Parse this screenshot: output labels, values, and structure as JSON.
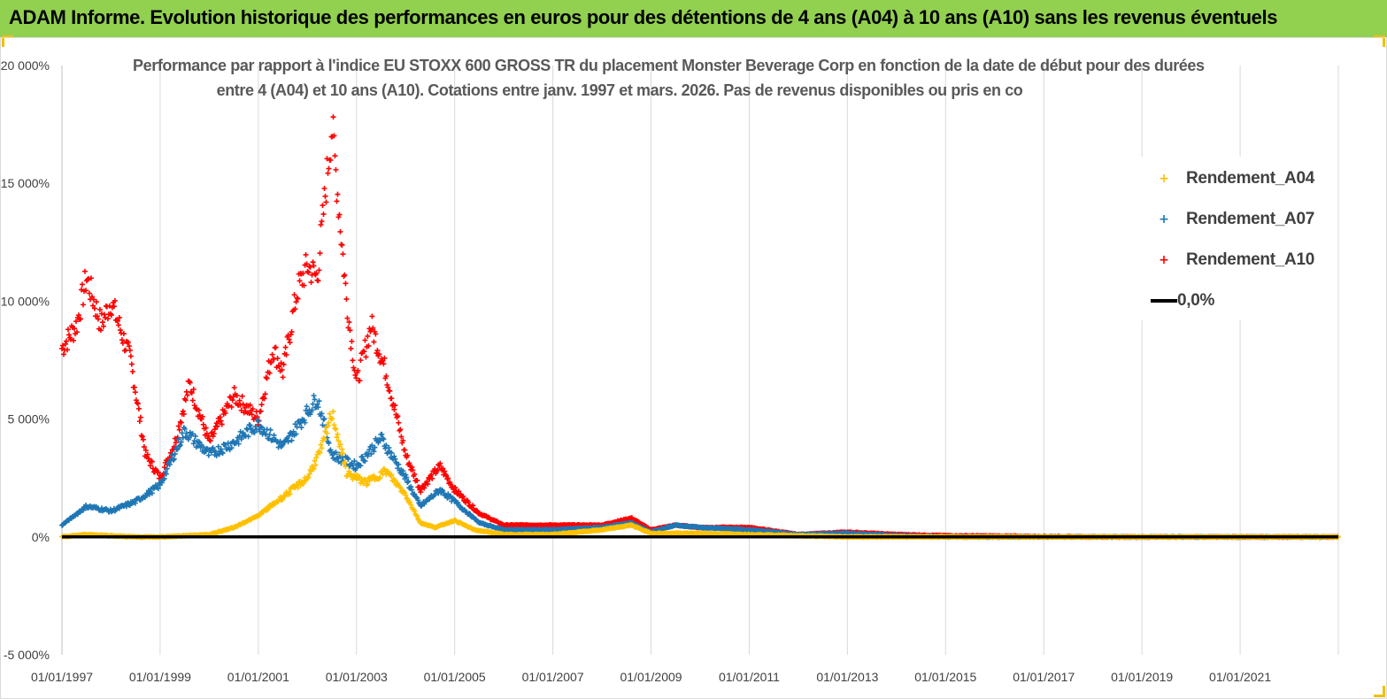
{
  "banner": {
    "title": "ADAM Informe. Evolution historique des performances en euros pour des détentions de 4 ans (A04) à 10 ans (A10) sans les revenus éventuels"
  },
  "colors": {
    "banner_bg": "#92d050",
    "A04": "#ffc000",
    "A07": "#1f77b4",
    "A10": "#ff0000",
    "zero": "#000000",
    "grid": "#d9d9d9"
  },
  "chart_data": {
    "type": "scatter",
    "title_line1": "Performance par rapport à l'indice EU STOXX 600 GROSS TR  du placement Monster Beverage Corp en fonction de la date de début pour des durées",
    "title_line2": "entre 4 (A04) et 10 ans (A10). Cotations entre janv. 1997 et mars. 2026. Pas de revenus disponibles ou pris en co",
    "xlabel": "",
    "ylabel": "",
    "x_range": [
      "1997-01-01",
      "2023-03-01"
    ],
    "ylim": [
      -5000,
      20000
    ],
    "y_ticks": [
      -5000,
      0,
      5000,
      10000,
      15000,
      20000
    ],
    "y_tick_labels": [
      "-5 000%",
      "0%",
      "5 000%",
      "10 000%",
      "15 000%",
      "20 000%"
    ],
    "x_tick_labels": [
      "01/01/1997",
      "01/01/1999",
      "01/01/2001",
      "01/01/2003",
      "01/01/2005",
      "01/01/2007",
      "01/01/2009",
      "01/01/2011",
      "01/01/2013",
      "01/01/2015",
      "01/01/2017",
      "01/01/2019",
      "01/01/2021"
    ],
    "grid": "vertical",
    "legend_position": "top-right",
    "series": [
      {
        "name": "Rendement_A04",
        "marker": "+",
        "points": [
          [
            1997.0,
            0
          ],
          [
            1997.5,
            100
          ],
          [
            1998.0,
            50
          ],
          [
            1998.5,
            0
          ],
          [
            1999.0,
            0
          ],
          [
            1999.5,
            50
          ],
          [
            2000.0,
            100
          ],
          [
            2000.5,
            400
          ],
          [
            2001.0,
            900
          ],
          [
            2001.5,
            1700
          ],
          [
            2002.0,
            2500
          ],
          [
            2002.3,
            3800
          ],
          [
            2002.5,
            5300
          ],
          [
            2002.8,
            2700
          ],
          [
            2003.2,
            2300
          ],
          [
            2003.6,
            2800
          ],
          [
            2004.0,
            1800
          ],
          [
            2004.3,
            600
          ],
          [
            2004.6,
            400
          ],
          [
            2005.0,
            700
          ],
          [
            2005.4,
            300
          ],
          [
            2006.0,
            100
          ],
          [
            2007.0,
            100
          ],
          [
            2008.0,
            300
          ],
          [
            2008.6,
            500
          ],
          [
            2009.0,
            150
          ],
          [
            2010.0,
            150
          ],
          [
            2011.0,
            100
          ],
          [
            2012.0,
            50
          ],
          [
            2013.0,
            0
          ],
          [
            2015.0,
            0
          ],
          [
            2018.0,
            0
          ],
          [
            2020.0,
            0
          ],
          [
            2023.0,
            0
          ]
        ]
      },
      {
        "name": "Rendement_A07",
        "marker": "+",
        "points": [
          [
            1997.0,
            500
          ],
          [
            1997.5,
            1300
          ],
          [
            1998.0,
            1100
          ],
          [
            1998.5,
            1500
          ],
          [
            1999.0,
            2200
          ],
          [
            1999.5,
            4500
          ],
          [
            2000.0,
            3500
          ],
          [
            2000.5,
            4000
          ],
          [
            2001.0,
            4800
          ],
          [
            2001.5,
            3800
          ],
          [
            2001.8,
            4700
          ],
          [
            2002.2,
            5900
          ],
          [
            2002.5,
            3500
          ],
          [
            2003.0,
            3000
          ],
          [
            2003.5,
            4200
          ],
          [
            2004.0,
            2500
          ],
          [
            2004.3,
            1300
          ],
          [
            2004.7,
            2000
          ],
          [
            2005.0,
            1500
          ],
          [
            2005.5,
            600
          ],
          [
            2006.0,
            300
          ],
          [
            2007.0,
            300
          ],
          [
            2008.0,
            400
          ],
          [
            2008.6,
            600
          ],
          [
            2009.0,
            200
          ],
          [
            2009.5,
            500
          ],
          [
            2010.0,
            400
          ],
          [
            2011.0,
            300
          ],
          [
            2012.0,
            100
          ],
          [
            2013.0,
            150
          ],
          [
            2014.0,
            50
          ],
          [
            2015.0,
            0
          ],
          [
            2018.0,
            0
          ],
          [
            2023.0,
            0
          ]
        ]
      },
      {
        "name": "Rendement_A10",
        "marker": "+",
        "points": [
          [
            1997.0,
            8000
          ],
          [
            1997.3,
            9000
          ],
          [
            1997.5,
            11000
          ],
          [
            1997.8,
            9000
          ],
          [
            1998.0,
            10000
          ],
          [
            1998.4,
            7500
          ],
          [
            1998.7,
            3500
          ],
          [
            1999.0,
            2500
          ],
          [
            1999.3,
            4000
          ],
          [
            1999.6,
            6500
          ],
          [
            2000.0,
            4000
          ],
          [
            2000.5,
            6000
          ],
          [
            2001.0,
            5000
          ],
          [
            2001.3,
            8000
          ],
          [
            2001.5,
            7000
          ],
          [
            2001.8,
            10500
          ],
          [
            2002.0,
            11500
          ],
          [
            2002.2,
            11000
          ],
          [
            2002.5,
            17500
          ],
          [
            2002.8,
            10000
          ],
          [
            2003.0,
            6500
          ],
          [
            2003.3,
            9000
          ],
          [
            2003.6,
            7000
          ],
          [
            2004.0,
            3500
          ],
          [
            2004.3,
            2000
          ],
          [
            2004.7,
            3000
          ],
          [
            2005.0,
            2000
          ],
          [
            2005.5,
            1000
          ],
          [
            2006.0,
            500
          ],
          [
            2007.0,
            500
          ],
          [
            2008.0,
            500
          ],
          [
            2008.6,
            800
          ],
          [
            2009.0,
            300
          ],
          [
            2009.5,
            500
          ],
          [
            2010.0,
            400
          ],
          [
            2011.0,
            400
          ],
          [
            2012.0,
            100
          ],
          [
            2013.0,
            200
          ],
          [
            2014.0,
            100
          ],
          [
            2015.0,
            50
          ],
          [
            2018.0,
            0
          ],
          [
            2023.0,
            0
          ]
        ]
      },
      {
        "name": "0,0%",
        "marker": "line",
        "points": [
          [
            1997.0,
            0
          ],
          [
            2023.0,
            0
          ]
        ]
      }
    ]
  }
}
